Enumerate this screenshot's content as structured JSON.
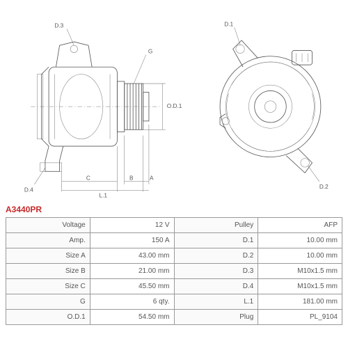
{
  "part_number": "A3440PR",
  "drawing": {
    "left_labels": {
      "d3": "D.3",
      "d4": "D.4",
      "c": "C",
      "b": "B",
      "a": "A",
      "l1": "L.1",
      "g": "G",
      "od1": "O.D.1"
    },
    "right_labels": {
      "d1": "D.1",
      "d2": "D.2"
    }
  },
  "specs": {
    "left": [
      {
        "label": "Voltage",
        "value": "12 V"
      },
      {
        "label": "Amp.",
        "value": "150 A"
      },
      {
        "label": "Size A",
        "value": "43.00 mm"
      },
      {
        "label": "Size B",
        "value": "21.00 mm"
      },
      {
        "label": "Size C",
        "value": "45.50 mm"
      },
      {
        "label": "G",
        "value": "6 qty."
      },
      {
        "label": "O.D.1",
        "value": "54.50 mm"
      }
    ],
    "right": [
      {
        "label": "Pulley",
        "value": "AFP"
      },
      {
        "label": "D.1",
        "value": "10.00 mm"
      },
      {
        "label": "D.2",
        "value": "10.00 mm"
      },
      {
        "label": "D.3",
        "value": "M10x1.5 mm"
      },
      {
        "label": "D.4",
        "value": "M10x1.5 mm"
      },
      {
        "label": "L.1",
        "value": "181.00 mm"
      },
      {
        "label": "Plug",
        "value": "PL_9104"
      }
    ]
  },
  "style": {
    "accent_color": "#c62828",
    "border_color": "#999999",
    "text_color": "#555555",
    "bg_color": "#ffffff"
  }
}
